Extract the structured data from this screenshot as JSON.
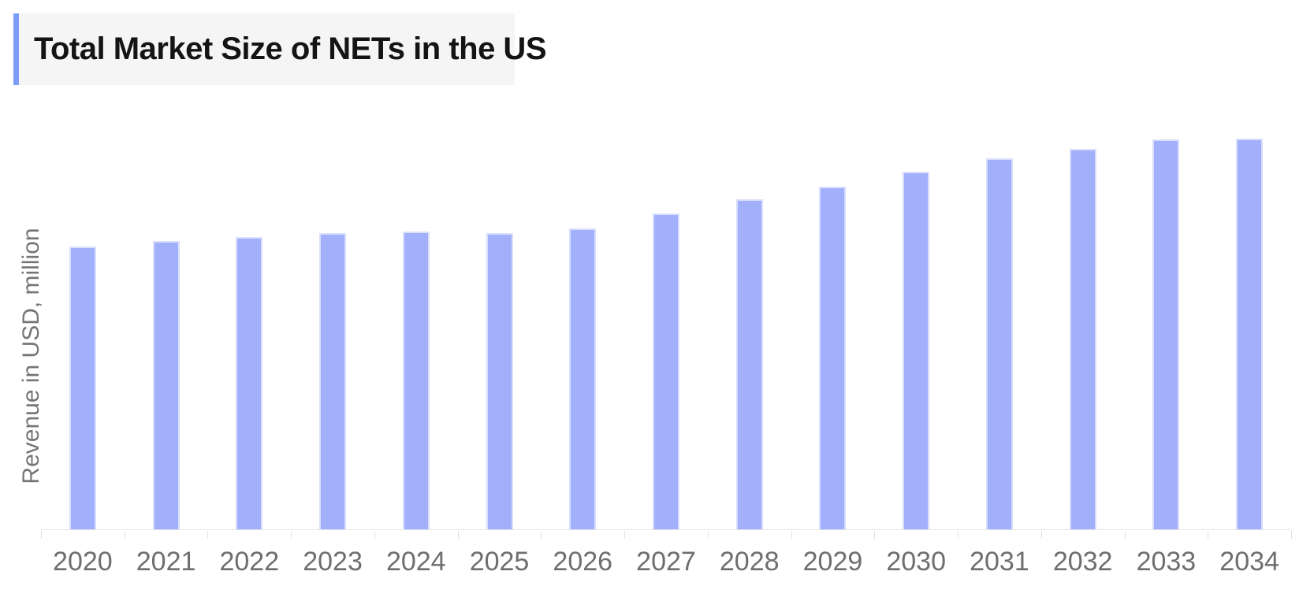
{
  "header": {
    "title": "Total Market Size of NETs in the US"
  },
  "colors": {
    "bar_fill": "#a2affa",
    "bar_border": "#d8defc",
    "axis_line": "#e3e3e3",
    "tick": "#e0e0e0",
    "label_text": "#6e6e6e",
    "ylabel_text": "#757575",
    "title_text": "#141414",
    "title_bg": "#f5f5f5",
    "accent": "#7e9cf7",
    "page_bg": "#ffffff"
  },
  "chart_data": {
    "type": "bar",
    "title": "Total Market Size of NETs in the US",
    "categories": [
      "2020",
      "2021",
      "2022",
      "2023",
      "2024",
      "2025",
      "2026",
      "2027",
      "2028",
      "2029",
      "2030",
      "2031",
      "2032",
      "2033",
      "2034"
    ],
    "values": [
      360,
      367,
      372,
      377,
      379,
      377,
      383,
      402,
      420,
      436,
      455,
      472,
      484,
      496,
      497
    ],
    "xlabel": "",
    "ylabel": "Revenue in USD, million",
    "ylim": [
      0,
      520
    ],
    "grid": false,
    "legend": false,
    "y_tick_labels_visible": false
  }
}
